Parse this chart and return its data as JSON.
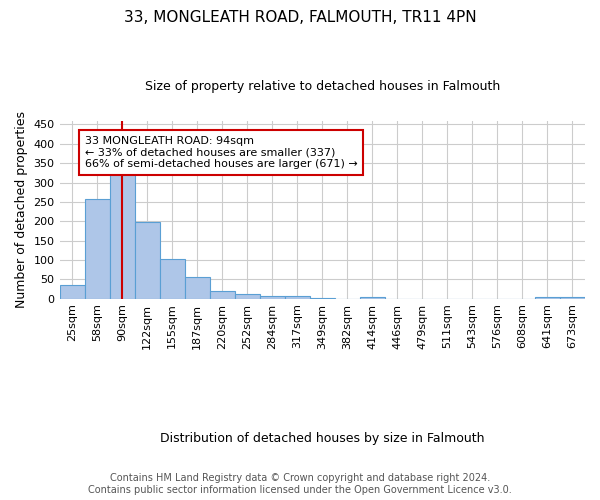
{
  "title1": "33, MONGLEATH ROAD, FALMOUTH, TR11 4PN",
  "title2": "Size of property relative to detached houses in Falmouth",
  "xlabel": "Distribution of detached houses by size in Falmouth",
  "ylabel": "Number of detached properties",
  "categories": [
    "25sqm",
    "58sqm",
    "90sqm",
    "122sqm",
    "155sqm",
    "187sqm",
    "220sqm",
    "252sqm",
    "284sqm",
    "317sqm",
    "349sqm",
    "382sqm",
    "414sqm",
    "446sqm",
    "479sqm",
    "511sqm",
    "543sqm",
    "576sqm",
    "608sqm",
    "641sqm",
    "673sqm"
  ],
  "values": [
    35,
    257,
    337,
    197,
    103,
    57,
    21,
    11,
    8,
    6,
    3,
    0,
    5,
    0,
    0,
    0,
    0,
    0,
    0,
    4,
    4
  ],
  "bar_color": "#aec6e8",
  "bar_edge_color": "#5a9fd4",
  "property_line_x": 2,
  "property_line_color": "#cc0000",
  "annotation_text": "33 MONGLEATH ROAD: 94sqm\n← 33% of detached houses are smaller (337)\n66% of semi-detached houses are larger (671) →",
  "annotation_box_color": "#ffffff",
  "annotation_box_edge_color": "#cc0000",
  "ylim": [
    0,
    460
  ],
  "yticks": [
    0,
    50,
    100,
    150,
    200,
    250,
    300,
    350,
    400,
    450
  ],
  "footer_text": "Contains HM Land Registry data © Crown copyright and database right 2024.\nContains public sector information licensed under the Open Government Licence v3.0.",
  "background_color": "#ffffff",
  "grid_color": "#cccccc",
  "title1_fontsize": 11,
  "title2_fontsize": 9,
  "ylabel_fontsize": 9,
  "xlabel_fontsize": 9,
  "tick_fontsize": 8,
  "annotation_fontsize": 8,
  "footer_fontsize": 7
}
